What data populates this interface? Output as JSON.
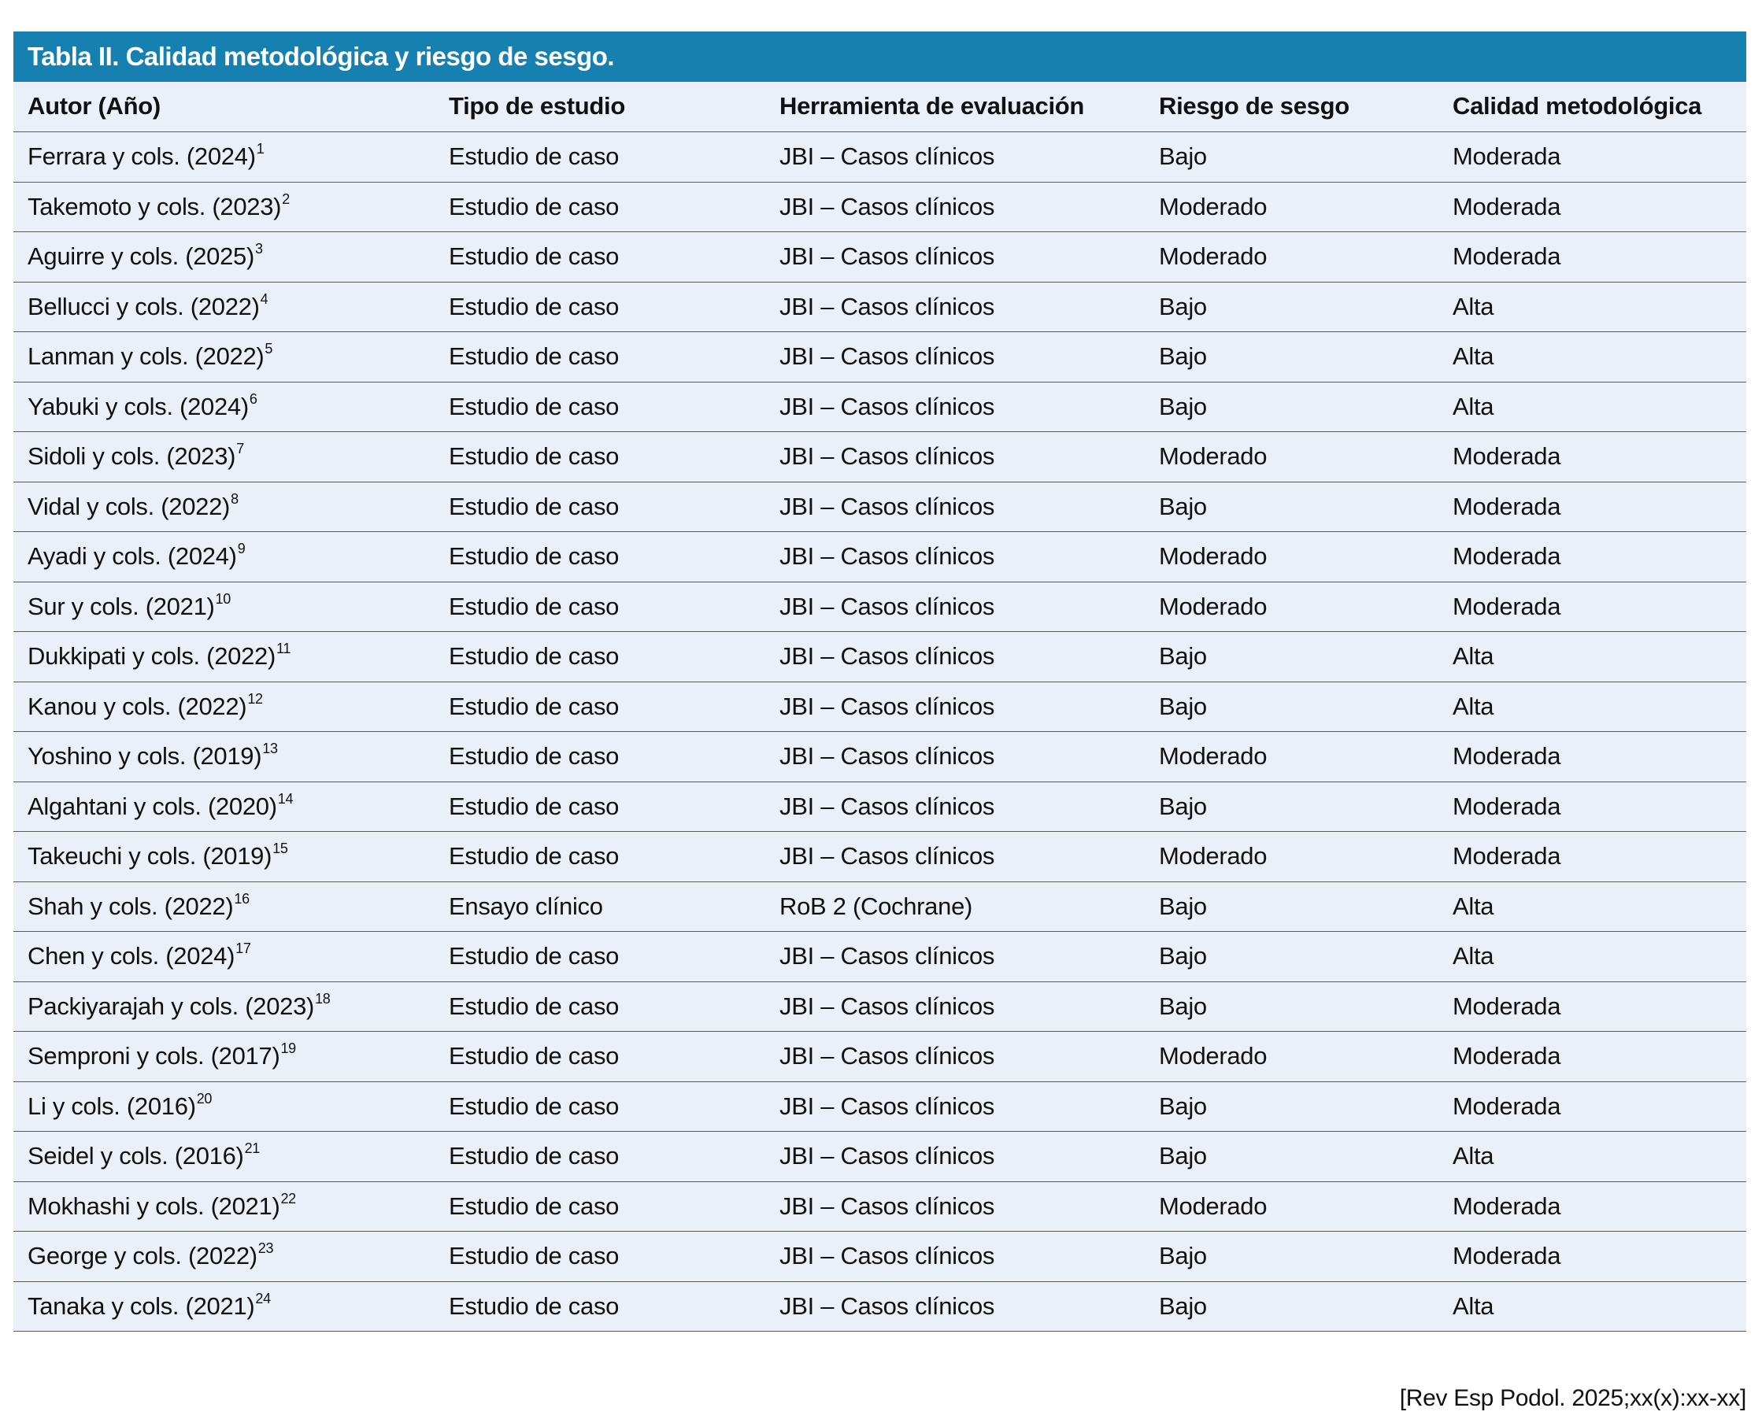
{
  "title": "Tabla II. Calidad metodológica y riesgo de sesgo.",
  "columns": [
    "Autor (Año)",
    "Tipo de estudio",
    "Herramienta de evaluación",
    "Riesgo de sesgo",
    "Calidad metodológica"
  ],
  "rows": [
    {
      "author": "Ferrara y cols. (2024)",
      "ref": "1",
      "type": "Estudio de caso",
      "tool": "JBI – Casos clínicos",
      "risk": "Bajo",
      "quality": "Moderada"
    },
    {
      "author": "Takemoto y cols. (2023)",
      "ref": "2",
      "type": "Estudio de caso",
      "tool": "JBI – Casos clínicos",
      "risk": "Moderado",
      "quality": "Moderada"
    },
    {
      "author": "Aguirre y cols. (2025)",
      "ref": "3",
      "type": "Estudio de caso",
      "tool": "JBI – Casos clínicos",
      "risk": "Moderado",
      "quality": "Moderada"
    },
    {
      "author": "Bellucci y cols. (2022)",
      "ref": "4",
      "type": "Estudio de caso",
      "tool": "JBI – Casos clínicos",
      "risk": "Bajo",
      "quality": "Alta"
    },
    {
      "author": "Lanman y cols. (2022)",
      "ref": "5",
      "type": "Estudio de caso",
      "tool": "JBI – Casos clínicos",
      "risk": "Bajo",
      "quality": "Alta"
    },
    {
      "author": "Yabuki y cols. (2024)",
      "ref": "6",
      "type": "Estudio de caso",
      "tool": "JBI – Casos clínicos",
      "risk": "Bajo",
      "quality": "Alta"
    },
    {
      "author": "Sidoli y cols. (2023)",
      "ref": "7",
      "type": "Estudio de caso",
      "tool": "JBI – Casos clínicos",
      "risk": "Moderado",
      "quality": "Moderada"
    },
    {
      "author": "Vidal y cols. (2022)",
      "ref": "8",
      "type": "Estudio de caso",
      "tool": "JBI – Casos clínicos",
      "risk": "Bajo",
      "quality": "Moderada"
    },
    {
      "author": "Ayadi y cols. (2024)",
      "ref": "9",
      "type": "Estudio de caso",
      "tool": "JBI – Casos clínicos",
      "risk": "Moderado",
      "quality": "Moderada"
    },
    {
      "author": "Sur y cols. (2021)",
      "ref": "10",
      "type": "Estudio de caso",
      "tool": "JBI – Casos clínicos",
      "risk": "Moderado",
      "quality": "Moderada"
    },
    {
      "author": "Dukkipati y cols. (2022)",
      "ref": "11",
      "type": "Estudio de caso",
      "tool": "JBI – Casos clínicos",
      "risk": "Bajo",
      "quality": "Alta"
    },
    {
      "author": "Kanou y cols. (2022)",
      "ref": "12",
      "type": "Estudio de caso",
      "tool": "JBI – Casos clínicos",
      "risk": "Bajo",
      "quality": "Alta"
    },
    {
      "author": "Yoshino y cols. (2019)",
      "ref": "13",
      "type": "Estudio de caso",
      "tool": "JBI – Casos clínicos",
      "risk": "Moderado",
      "quality": "Moderada"
    },
    {
      "author": "Algahtani y cols. (2020)",
      "ref": "14",
      "type": "Estudio de caso",
      "tool": "JBI – Casos clínicos",
      "risk": "Bajo",
      "quality": "Moderada"
    },
    {
      "author": "Takeuchi y cols. (2019)",
      "ref": "15",
      "type": "Estudio de caso",
      "tool": "JBI – Casos clínicos",
      "risk": "Moderado",
      "quality": "Moderada"
    },
    {
      "author": "Shah y cols. (2022)",
      "ref": "16",
      "type": "Ensayo clínico",
      "tool": "RoB 2 (Cochrane)",
      "risk": "Bajo",
      "quality": "Alta"
    },
    {
      "author": "Chen y cols. (2024)",
      "ref": "17",
      "type": "Estudio de caso",
      "tool": "JBI – Casos clínicos",
      "risk": "Bajo",
      "quality": "Alta"
    },
    {
      "author": "Packiyarajah y cols. (2023)",
      "ref": "18",
      "type": "Estudio de caso",
      "tool": "JBI – Casos clínicos",
      "risk": "Bajo",
      "quality": "Moderada"
    },
    {
      "author": "Semproni y cols. (2017)",
      "ref": "19",
      "type": "Estudio de caso",
      "tool": "JBI – Casos clínicos",
      "risk": "Moderado",
      "quality": "Moderada"
    },
    {
      "author": "Li y cols. (2016)",
      "ref": "20",
      "type": "Estudio de caso",
      "tool": "JBI – Casos clínicos",
      "risk": "Bajo",
      "quality": "Moderada"
    },
    {
      "author": "Seidel y cols. (2016)",
      "ref": "21",
      "type": "Estudio de caso",
      "tool": "JBI – Casos clínicos",
      "risk": "Bajo",
      "quality": "Alta"
    },
    {
      "author": "Mokhashi y cols. (2021)",
      "ref": "22",
      "type": "Estudio de caso",
      "tool": "JBI – Casos clínicos",
      "risk": "Moderado",
      "quality": "Moderada"
    },
    {
      "author": "George y cols. (2022)",
      "ref": "23",
      "type": "Estudio de caso",
      "tool": "JBI – Casos clínicos",
      "risk": "Bajo",
      "quality": "Moderada"
    },
    {
      "author": "Tanaka y cols. (2021)",
      "ref": "24",
      "type": "Estudio de caso",
      "tool": "JBI – Casos clínicos",
      "risk": "Bajo",
      "quality": "Alta"
    }
  ],
  "footer": "[Rev Esp Podol. 2025;xx(x):xx-xx]",
  "colors": {
    "title_bar": "#1680b1",
    "row_bg": "#ebeff7",
    "rule": "#5a5a5a"
  }
}
